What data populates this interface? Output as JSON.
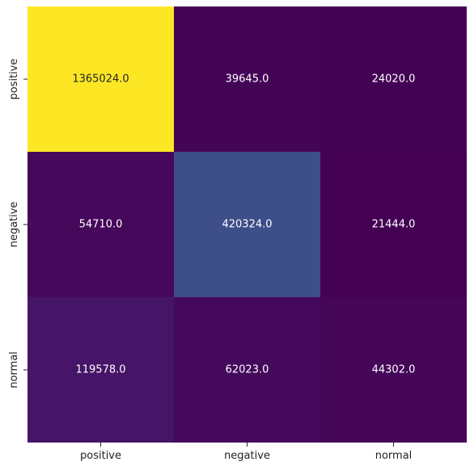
{
  "chart_data": {
    "type": "heatmap",
    "x_categories": [
      "positive",
      "negative",
      "normal"
    ],
    "y_categories": [
      "positive",
      "negative",
      "normal"
    ],
    "values": [
      [
        1365024.0,
        39645.0,
        24020.0
      ],
      [
        54710.0,
        420324.0,
        21444.0
      ],
      [
        119578.0,
        62023.0,
        44302.0
      ]
    ],
    "cell_labels": [
      [
        "1365024.0",
        "39645.0",
        "24020.0"
      ],
      [
        "54710.0",
        "420324.0",
        "21444.0"
      ],
      [
        "119578.0",
        "62023.0",
        "44302.0"
      ]
    ],
    "colormap": "viridis",
    "colorbar": false,
    "grid": false
  }
}
